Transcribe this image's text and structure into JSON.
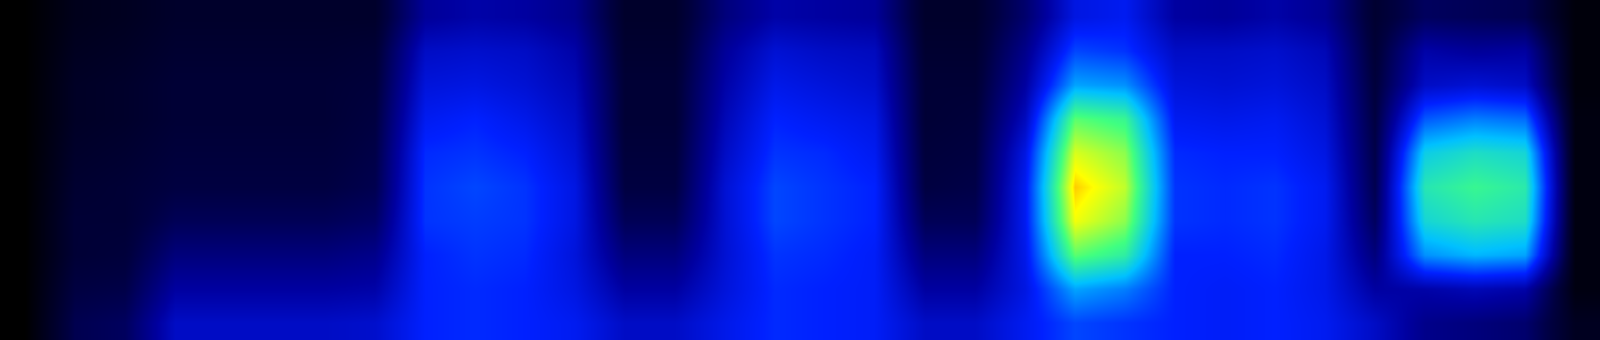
{
  "chart_data": {
    "type": "heatmap",
    "tick_labels": false,
    "grid": false,
    "zlim": [
      0,
      10
    ],
    "cells": [
      [
        0,
        0.5,
        0.6,
        0.8,
        0.8,
        0.8,
        0.8,
        0.8,
        2.4,
        2.6,
        2.5,
        2.2,
        0.8,
        0.8,
        2.0,
        2.6,
        2.5,
        2.4,
        0.8,
        0.8,
        1.8,
        3.4,
        3.6,
        2.5,
        2.4,
        2.6,
        2.3,
        0.9,
        1.6,
        1.5,
        1.4,
        0.2
      ],
      [
        0,
        0.6,
        0.7,
        0.9,
        0.9,
        0.9,
        0.9,
        1.0,
        3.0,
        3.1,
        3.0,
        2.6,
        0.9,
        0.9,
        2.4,
        3.2,
        3.0,
        2.9,
        0.9,
        0.9,
        2.2,
        4.2,
        4.0,
        3.0,
        3.0,
        3.1,
        2.8,
        1.0,
        2.6,
        2.4,
        2.5,
        0.2
      ],
      [
        0,
        0.7,
        0.8,
        1.0,
        1.0,
        1.0,
        1.0,
        1.1,
        3.3,
        3.4,
        3.2,
        2.8,
        1.0,
        1.0,
        2.6,
        3.5,
        3.3,
        3.1,
        1.0,
        1.0,
        2.5,
        5.2,
        5.0,
        3.3,
        3.2,
        3.3,
        3.0,
        1.1,
        3.0,
        3.2,
        3.0,
        0.2
      ],
      [
        0,
        0.7,
        0.8,
        1.0,
        1.0,
        1.0,
        1.0,
        1.2,
        3.6,
        3.8,
        3.5,
        3.0,
        1.0,
        1.0,
        2.8,
        3.8,
        3.6,
        3.4,
        1.0,
        1.1,
        2.9,
        7.2,
        6.8,
        3.6,
        3.5,
        3.6,
        3.2,
        1.2,
        4.4,
        4.8,
        4.6,
        0.3
      ],
      [
        0,
        0.8,
        0.9,
        1.1,
        1.1,
        1.1,
        1.1,
        1.3,
        3.9,
        4.0,
        3.8,
        3.2,
        1.1,
        1.1,
        3.0,
        4.0,
        3.9,
        3.6,
        1.1,
        1.2,
        3.4,
        8.2,
        7.6,
        3.9,
        3.8,
        3.8,
        3.4,
        1.3,
        5.8,
        6.2,
        6.0,
        0.3
      ],
      [
        0,
        0.9,
        1.0,
        1.2,
        1.2,
        1.2,
        1.2,
        1.4,
        4.0,
        4.2,
        4.0,
        3.4,
        1.2,
        1.2,
        3.2,
        4.2,
        4.0,
        3.8,
        1.2,
        1.3,
        3.6,
        8.8,
        8.0,
        4.0,
        3.9,
        4.0,
        3.6,
        1.4,
        6.4,
        6.8,
        6.5,
        0.3
      ],
      [
        0,
        1.0,
        1.0,
        1.5,
        1.5,
        1.5,
        1.5,
        1.7,
        4.0,
        4.1,
        4.0,
        3.4,
        1.5,
        1.5,
        3.2,
        4.2,
        4.0,
        3.8,
        1.5,
        1.5,
        3.6,
        8.4,
        7.6,
        4.0,
        3.9,
        4.0,
        3.6,
        1.6,
        6.0,
        6.4,
        6.2,
        0.3
      ],
      [
        0,
        1.0,
        1.1,
        2.0,
        2.0,
        2.0,
        2.0,
        2.2,
        3.8,
        4.0,
        3.9,
        3.3,
        2.0,
        2.0,
        3.2,
        4.0,
        3.9,
        3.7,
        2.0,
        2.0,
        3.5,
        7.2,
        6.6,
        3.8,
        3.8,
        3.9,
        3.5,
        2.0,
        5.0,
        5.4,
        5.2,
        0.3
      ],
      [
        0,
        1.2,
        1.3,
        2.5,
        2.5,
        2.5,
        2.5,
        2.6,
        3.8,
        3.9,
        3.8,
        3.4,
        2.5,
        2.5,
        3.3,
        3.9,
        3.8,
        3.7,
        2.5,
        2.5,
        3.4,
        5.2,
        4.8,
        3.8,
        3.7,
        3.8,
        3.5,
        2.5,
        2.6,
        2.8,
        2.6,
        0.3
      ],
      [
        0,
        1.4,
        1.6,
        3.0,
        3.0,
        3.0,
        3.0,
        3.1,
        3.8,
        3.9,
        3.8,
        3.6,
        3.0,
        3.0,
        3.5,
        3.9,
        3.8,
        3.7,
        3.0,
        3.0,
        3.6,
        4.2,
        4.0,
        3.8,
        3.7,
        3.8,
        3.6,
        3.0,
        2.2,
        2.0,
        1.8,
        0.6
      ]
    ]
  }
}
